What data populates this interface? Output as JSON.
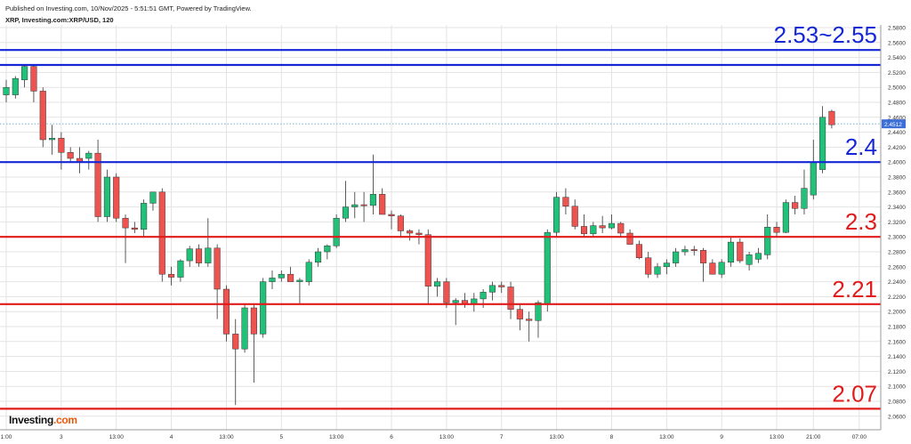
{
  "header": {
    "published": "Published on Investing.com, 10/Nov/2025 - 5:51:51 GMT, Powered by TradingView.",
    "symbol": "XRP, Investing.com:XRP/USD, 120"
  },
  "logo": {
    "text": "Investing",
    "suffix": ".com"
  },
  "colors": {
    "up": "#22c17a",
    "down": "#ef5350",
    "blue_line": "#1426d6",
    "red_line": "#e01b1b",
    "price_tag": "#3d6fd8",
    "grid": "#e3e3e3"
  },
  "chart_data": {
    "type": "candlestick",
    "ylim": [
      2.06,
      2.59
    ],
    "yticks": [
      "2.5800",
      "2.5600",
      "2.5400",
      "2.5200",
      "2.5000",
      "2.4800",
      "2.4600",
      "2.4400",
      "2.4200",
      "2.4000",
      "2.3800",
      "2.3600",
      "2.3400",
      "2.3200",
      "2.3000",
      "2.2800",
      "2.2600",
      "2.2400",
      "2.2200",
      "2.2000",
      "2.1800",
      "2.1600",
      "2.1400",
      "2.1200",
      "2.1000",
      "2.0800",
      "2.0600"
    ],
    "xticks": [
      {
        "bar": 0,
        "label": "1:00"
      },
      {
        "bar": 6,
        "label": "3"
      },
      {
        "bar": 12,
        "label": "13:00"
      },
      {
        "bar": 18,
        "label": "4"
      },
      {
        "bar": 24,
        "label": "13:00"
      },
      {
        "bar": 30,
        "label": "5"
      },
      {
        "bar": 36,
        "label": "13:00"
      },
      {
        "bar": 42,
        "label": "6"
      },
      {
        "bar": 48,
        "label": "13:00"
      },
      {
        "bar": 54,
        "label": "7"
      },
      {
        "bar": 60,
        "label": "13:00"
      },
      {
        "bar": 66,
        "label": "8"
      },
      {
        "bar": 72,
        "label": "13:00"
      },
      {
        "bar": 78,
        "label": "9"
      },
      {
        "bar": 84,
        "label": "13:00"
      },
      {
        "bar": 88,
        "label": "21:00"
      },
      {
        "bar": 93,
        "label": "07:00"
      }
    ],
    "last_price": "2.4512",
    "last_price_value": 2.4512,
    "candles": [
      {
        "o": 2.49,
        "h": 2.51,
        "l": 2.48,
        "c": 2.5
      },
      {
        "o": 2.49,
        "h": 2.515,
        "l": 2.485,
        "c": 2.512
      },
      {
        "o": 2.51,
        "h": 2.53,
        "l": 2.5,
        "c": 2.528
      },
      {
        "o": 2.528,
        "h": 2.53,
        "l": 2.48,
        "c": 2.495
      },
      {
        "o": 2.495,
        "h": 2.5,
        "l": 2.42,
        "c": 2.43
      },
      {
        "o": 2.43,
        "h": 2.45,
        "l": 2.41,
        "c": 2.432
      },
      {
        "o": 2.432,
        "h": 2.44,
        "l": 2.39,
        "c": 2.413
      },
      {
        "o": 2.413,
        "h": 2.42,
        "l": 2.4,
        "c": 2.405
      },
      {
        "o": 2.405,
        "h": 2.42,
        "l": 2.385,
        "c": 2.4
      },
      {
        "o": 2.405,
        "h": 2.415,
        "l": 2.39,
        "c": 2.412
      },
      {
        "o": 2.412,
        "h": 2.43,
        "l": 2.32,
        "c": 2.327
      },
      {
        "o": 2.327,
        "h": 2.39,
        "l": 2.32,
        "c": 2.38
      },
      {
        "o": 2.38,
        "h": 2.385,
        "l": 2.32,
        "c": 2.325
      },
      {
        "o": 2.325,
        "h": 2.33,
        "l": 2.265,
        "c": 2.312
      },
      {
        "o": 2.312,
        "h": 2.32,
        "l": 2.305,
        "c": 2.31
      },
      {
        "o": 2.31,
        "h": 2.35,
        "l": 2.3,
        "c": 2.345
      },
      {
        "o": 2.345,
        "h": 2.36,
        "l": 2.335,
        "c": 2.36
      },
      {
        "o": 2.36,
        "h": 2.365,
        "l": 2.24,
        "c": 2.25
      },
      {
        "o": 2.25,
        "h": 2.26,
        "l": 2.235,
        "c": 2.246
      },
      {
        "o": 2.246,
        "h": 2.27,
        "l": 2.24,
        "c": 2.268
      },
      {
        "o": 2.268,
        "h": 2.288,
        "l": 2.26,
        "c": 2.284
      },
      {
        "o": 2.284,
        "h": 2.29,
        "l": 2.26,
        "c": 2.265
      },
      {
        "o": 2.265,
        "h": 2.325,
        "l": 2.26,
        "c": 2.285
      },
      {
        "o": 2.285,
        "h": 2.29,
        "l": 2.19,
        "c": 2.23
      },
      {
        "o": 2.23,
        "h": 2.235,
        "l": 2.16,
        "c": 2.17
      },
      {
        "o": 2.17,
        "h": 2.19,
        "l": 2.075,
        "c": 2.15
      },
      {
        "o": 2.15,
        "h": 2.21,
        "l": 2.145,
        "c": 2.205
      },
      {
        "o": 2.205,
        "h": 2.21,
        "l": 2.105,
        "c": 2.17
      },
      {
        "o": 2.17,
        "h": 2.245,
        "l": 2.165,
        "c": 2.24
      },
      {
        "o": 2.24,
        "h": 2.255,
        "l": 2.23,
        "c": 2.245
      },
      {
        "o": 2.245,
        "h": 2.255,
        "l": 2.24,
        "c": 2.25
      },
      {
        "o": 2.25,
        "h": 2.26,
        "l": 2.24,
        "c": 2.24
      },
      {
        "o": 2.24,
        "h": 2.245,
        "l": 2.21,
        "c": 2.242
      },
      {
        "o": 2.24,
        "h": 2.27,
        "l": 2.235,
        "c": 2.266
      },
      {
        "o": 2.266,
        "h": 2.285,
        "l": 2.26,
        "c": 2.28
      },
      {
        "o": 2.28,
        "h": 2.29,
        "l": 2.27,
        "c": 2.288
      },
      {
        "o": 2.288,
        "h": 2.33,
        "l": 2.285,
        "c": 2.325
      },
      {
        "o": 2.325,
        "h": 2.375,
        "l": 2.32,
        "c": 2.34
      },
      {
        "o": 2.34,
        "h": 2.36,
        "l": 2.325,
        "c": 2.343
      },
      {
        "o": 2.343,
        "h": 2.36,
        "l": 2.32,
        "c": 2.342
      },
      {
        "o": 2.342,
        "h": 2.41,
        "l": 2.33,
        "c": 2.357
      },
      {
        "o": 2.357,
        "h": 2.365,
        "l": 2.33,
        "c": 2.33
      },
      {
        "o": 2.33,
        "h": 2.335,
        "l": 2.31,
        "c": 2.328
      },
      {
        "o": 2.328,
        "h": 2.33,
        "l": 2.3,
        "c": 2.308
      },
      {
        "o": 2.308,
        "h": 2.31,
        "l": 2.295,
        "c": 2.305
      },
      {
        "o": 2.305,
        "h": 2.31,
        "l": 2.29,
        "c": 2.303
      },
      {
        "o": 2.303,
        "h": 2.31,
        "l": 2.21,
        "c": 2.234
      },
      {
        "o": 2.234,
        "h": 2.245,
        "l": 2.22,
        "c": 2.24
      },
      {
        "o": 2.24,
        "h": 2.245,
        "l": 2.205,
        "c": 2.212
      },
      {
        "o": 2.212,
        "h": 2.218,
        "l": 2.182,
        "c": 2.215
      },
      {
        "o": 2.215,
        "h": 2.225,
        "l": 2.205,
        "c": 2.21
      },
      {
        "o": 2.21,
        "h": 2.225,
        "l": 2.2,
        "c": 2.217
      },
      {
        "o": 2.217,
        "h": 2.23,
        "l": 2.205,
        "c": 2.226
      },
      {
        "o": 2.226,
        "h": 2.24,
        "l": 2.215,
        "c": 2.235
      },
      {
        "o": 2.235,
        "h": 2.24,
        "l": 2.225,
        "c": 2.233
      },
      {
        "o": 2.233,
        "h": 2.24,
        "l": 2.19,
        "c": 2.203
      },
      {
        "o": 2.203,
        "h": 2.21,
        "l": 2.175,
        "c": 2.19
      },
      {
        "o": 2.19,
        "h": 2.2,
        "l": 2.16,
        "c": 2.188
      },
      {
        "o": 2.188,
        "h": 2.215,
        "l": 2.165,
        "c": 2.212
      },
      {
        "o": 2.21,
        "h": 2.31,
        "l": 2.2,
        "c": 2.306
      },
      {
        "o": 2.306,
        "h": 2.36,
        "l": 2.3,
        "c": 2.353
      },
      {
        "o": 2.353,
        "h": 2.365,
        "l": 2.33,
        "c": 2.341
      },
      {
        "o": 2.341,
        "h": 2.35,
        "l": 2.31,
        "c": 2.314
      },
      {
        "o": 2.314,
        "h": 2.33,
        "l": 2.3,
        "c": 2.304
      },
      {
        "o": 2.304,
        "h": 2.32,
        "l": 2.3,
        "c": 2.315
      },
      {
        "o": 2.315,
        "h": 2.328,
        "l": 2.305,
        "c": 2.312
      },
      {
        "o": 2.312,
        "h": 2.33,
        "l": 2.31,
        "c": 2.318
      },
      {
        "o": 2.318,
        "h": 2.32,
        "l": 2.3,
        "c": 2.305
      },
      {
        "o": 2.305,
        "h": 2.31,
        "l": 2.29,
        "c": 2.29
      },
      {
        "o": 2.29,
        "h": 2.295,
        "l": 2.27,
        "c": 2.272
      },
      {
        "o": 2.272,
        "h": 2.28,
        "l": 2.245,
        "c": 2.25
      },
      {
        "o": 2.25,
        "h": 2.265,
        "l": 2.245,
        "c": 2.26
      },
      {
        "o": 2.26,
        "h": 2.27,
        "l": 2.25,
        "c": 2.265
      },
      {
        "o": 2.265,
        "h": 2.285,
        "l": 2.26,
        "c": 2.28
      },
      {
        "o": 2.28,
        "h": 2.288,
        "l": 2.275,
        "c": 2.283
      },
      {
        "o": 2.283,
        "h": 2.288,
        "l": 2.275,
        "c": 2.282
      },
      {
        "o": 2.282,
        "h": 2.285,
        "l": 2.24,
        "c": 2.265
      },
      {
        "o": 2.265,
        "h": 2.27,
        "l": 2.25,
        "c": 2.25
      },
      {
        "o": 2.25,
        "h": 2.27,
        "l": 2.245,
        "c": 2.266
      },
      {
        "o": 2.266,
        "h": 2.3,
        "l": 2.26,
        "c": 2.293
      },
      {
        "o": 2.293,
        "h": 2.298,
        "l": 2.265,
        "c": 2.268
      },
      {
        "o": 2.263,
        "h": 2.28,
        "l": 2.255,
        "c": 2.276
      },
      {
        "o": 2.27,
        "h": 2.285,
        "l": 2.265,
        "c": 2.278
      },
      {
        "o": 2.276,
        "h": 2.33,
        "l": 2.27,
        "c": 2.313
      },
      {
        "o": 2.313,
        "h": 2.32,
        "l": 2.3,
        "c": 2.306
      },
      {
        "o": 2.306,
        "h": 2.35,
        "l": 2.305,
        "c": 2.346
      },
      {
        "o": 2.346,
        "h": 2.355,
        "l": 2.33,
        "c": 2.338
      },
      {
        "o": 2.338,
        "h": 2.39,
        "l": 2.33,
        "c": 2.365
      },
      {
        "o": 2.356,
        "h": 2.43,
        "l": 2.35,
        "c": 2.4
      },
      {
        "o": 2.39,
        "h": 2.475,
        "l": 2.385,
        "c": 2.46
      },
      {
        "o": 2.468,
        "h": 2.47,
        "l": 2.445,
        "c": 2.45
      }
    ],
    "levels": [
      {
        "value": 2.55,
        "color": "blue",
        "label": "2.53~2.55"
      },
      {
        "value": 2.53,
        "color": "blue",
        "label": ""
      },
      {
        "value": 2.4,
        "color": "blue",
        "label": "2.4"
      },
      {
        "value": 2.3,
        "color": "red",
        "label": "2.3"
      },
      {
        "value": 2.21,
        "color": "red",
        "label": "2.21"
      },
      {
        "value": 2.07,
        "color": "red",
        "label": "2.07"
      }
    ]
  }
}
